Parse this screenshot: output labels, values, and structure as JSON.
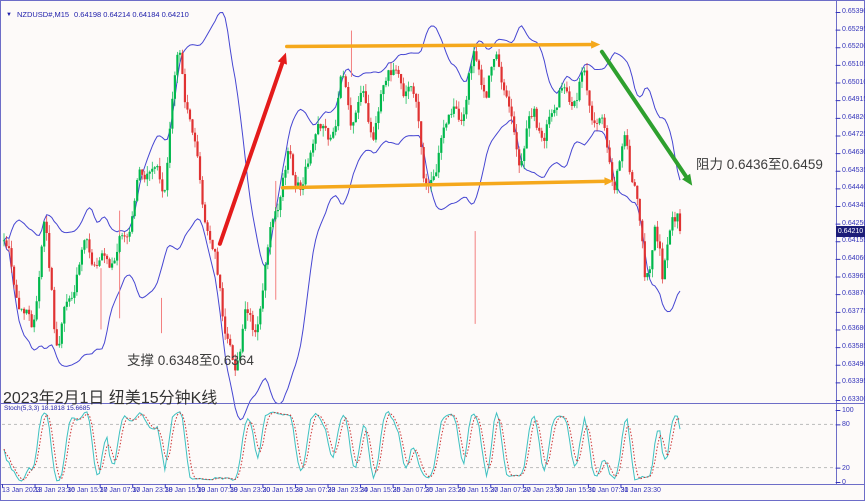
{
  "window": {
    "symbol_period": "NZDUSD#,M15",
    "quotes": "0.64198 0.64214 0.64184 0.64210"
  },
  "icons": {
    "chart_menu": "▼"
  },
  "chart_data": {
    "type": "candlestick",
    "symbol": "NZDUSD#",
    "timeframe": "M15",
    "ohlc": {
      "open": 0.64198,
      "high": 0.64214,
      "low": 0.64184,
      "close": 0.6421
    },
    "current_price": 0.6421,
    "current_price_label": "0.64210",
    "y_axis": {
      "min": 0.633,
      "max": 0.6539,
      "step": 0.00095,
      "ticks": [
        "0.65390",
        "0.65295",
        "0.65200",
        "0.65105",
        "0.65010",
        "0.64915",
        "0.64820",
        "0.64725",
        "0.64630",
        "0.64535",
        "0.64440",
        "0.64345",
        "0.64250",
        "0.64155",
        "0.64060",
        "0.63965",
        "0.63870",
        "0.63775",
        "0.63680",
        "0.63585",
        "0.63490",
        "0.63395",
        "0.63300"
      ]
    },
    "x_axis": {
      "ticks": [
        "13 Jan 2023",
        "13 Jan 23:30",
        "16 Jan 15:30",
        "17 Jan 07:30",
        "17 Jan 23:30",
        "18 Jan 15:30",
        "19 Jan 07:30",
        "19 Jan 23:30",
        "20 Jan 15:30",
        "23 Jan 07:30",
        "23 Jan 23:30",
        "24 Jan 15:30",
        "25 Jan 07:30",
        "25 Jan 23:30",
        "26 Jan 15:30",
        "27 Jan 07:30",
        "27 Jan 23:30",
        "30 Jan 15:30",
        "31 Jan 07:30",
        "31 Jan 23:30"
      ]
    },
    "price_path": [
      [
        0.0,
        0.6412
      ],
      [
        0.02,
        0.6386
      ],
      [
        0.04,
        0.6371
      ],
      [
        0.06,
        0.6424
      ],
      [
        0.08,
        0.6353
      ],
      [
        0.1,
        0.6391
      ],
      [
        0.125,
        0.6419
      ],
      [
        0.14,
        0.6397
      ],
      [
        0.17,
        0.6408
      ],
      [
        0.2,
        0.645
      ],
      [
        0.215,
        0.6457
      ],
      [
        0.235,
        0.6437
      ],
      [
        0.255,
        0.651
      ],
      [
        0.262,
        0.6521
      ],
      [
        0.27,
        0.6494
      ],
      [
        0.29,
        0.6448
      ],
      [
        0.305,
        0.6409
      ],
      [
        0.32,
        0.6391
      ],
      [
        0.333,
        0.6357
      ],
      [
        0.342,
        0.6349
      ],
      [
        0.356,
        0.6379
      ],
      [
        0.37,
        0.6361
      ],
      [
        0.385,
        0.6391
      ],
      [
        0.4,
        0.6431
      ],
      [
        0.422,
        0.6464
      ],
      [
        0.444,
        0.6441
      ],
      [
        0.463,
        0.6479
      ],
      [
        0.48,
        0.6469
      ],
      [
        0.5,
        0.6504
      ],
      [
        0.515,
        0.6481
      ],
      [
        0.533,
        0.6491
      ],
      [
        0.548,
        0.6471
      ],
      [
        0.57,
        0.6519
      ],
      [
        0.589,
        0.6494
      ],
      [
        0.6,
        0.6504
      ],
      [
        0.622,
        0.6451
      ],
      [
        0.637,
        0.6446
      ],
      [
        0.652,
        0.6489
      ],
      [
        0.674,
        0.6476
      ],
      [
        0.696,
        0.6513
      ],
      [
        0.715,
        0.6499
      ],
      [
        0.73,
        0.6519
      ],
      [
        0.748,
        0.6481
      ],
      [
        0.763,
        0.6456
      ],
      [
        0.785,
        0.6489
      ],
      [
        0.8,
        0.6471
      ],
      [
        0.822,
        0.6499
      ],
      [
        0.837,
        0.6486
      ],
      [
        0.856,
        0.6504
      ],
      [
        0.87,
        0.6491
      ],
      [
        0.889,
        0.6471
      ],
      [
        0.904,
        0.6441
      ],
      [
        0.919,
        0.6469
      ],
      [
        0.933,
        0.6447
      ],
      [
        0.948,
        0.6401
      ],
      [
        0.963,
        0.6421
      ],
      [
        0.974,
        0.6392
      ],
      [
        0.985,
        0.6424
      ],
      [
        1.0,
        0.6421
      ]
    ],
    "annotations": {
      "caption": "2023年2月1日 纽美15分钟K线",
      "support": {
        "text": "支撑 0.6348至0.6364",
        "low": 0.6348,
        "high": 0.6364
      },
      "resistance": {
        "text": "阻力 0.6436至0.6459",
        "low": 0.6436,
        "high": 0.6459
      }
    },
    "arrows": [
      {
        "name": "impulse-up-arrow",
        "color": "#e41b1b",
        "width": 4,
        "head": 12,
        "from": {
          "x": 0.263,
          "price": 0.64141
        },
        "to": {
          "x": 0.342,
          "price": 0.65171
        }
      },
      {
        "name": "range-top-arrow",
        "color": "#f5a81c",
        "width": 3.5,
        "head": 10,
        "from": {
          "x": 0.343,
          "price": 0.65204
        },
        "to": {
          "x": 0.718,
          "price": 0.65215
        }
      },
      {
        "name": "range-mid-arrow",
        "color": "#f5a81c",
        "width": 3.5,
        "head": 10,
        "from": {
          "x": 0.338,
          "price": 0.64443
        },
        "to": {
          "x": 0.734,
          "price": 0.64479
        }
      },
      {
        "name": "decline-arrow",
        "color": "#2ea02e",
        "width": 4,
        "head": 12,
        "from": {
          "x": 0.72,
          "price": 0.65176
        },
        "to": {
          "x": 0.828,
          "price": 0.64455
        }
      }
    ],
    "vertical_marks": [
      {
        "x": 0.1435,
        "p1": 0.6401,
        "p2": 0.6368
      },
      {
        "x": 0.171,
        "p1": 0.6432,
        "p2": 0.6374
      },
      {
        "x": 0.233,
        "p1": 0.6385,
        "p2": 0.6366
      },
      {
        "x": 0.402,
        "p1": 0.6448,
        "p2": 0.6384
      },
      {
        "x": 0.514,
        "p1": 0.6529,
        "p2": 0.6504
      },
      {
        "x": 0.697,
        "p1": 0.6421,
        "p2": 0.6371
      }
    ],
    "indicator": {
      "label": "Stoch(5,3,3) 18.1818 15.6685",
      "name": "Stoch",
      "params": "5,3,3",
      "main_value": 18.1818,
      "signal_value": 15.6685,
      "levels": [
        80,
        20
      ],
      "scale": [
        "100",
        "80",
        "20",
        "0"
      ]
    },
    "colors": {
      "bull": "#00b84c",
      "bear": "#e03232",
      "band": "#4646d2",
      "frame": "#6d6dc8",
      "axis_text": "#3535bb",
      "stoch_main": "#3ec1c1",
      "stoch_signal": "#cc3333",
      "level_dash": "#bcbcbc",
      "arrow_red": "#e41b1b",
      "arrow_orange": "#f5a81c",
      "arrow_green": "#2ea02e",
      "price_tag_bg": "#1c1c78",
      "price_tag_text": "#ffffff",
      "vertical_mark": "#f38080",
      "background": "#fdfaf9"
    }
  }
}
